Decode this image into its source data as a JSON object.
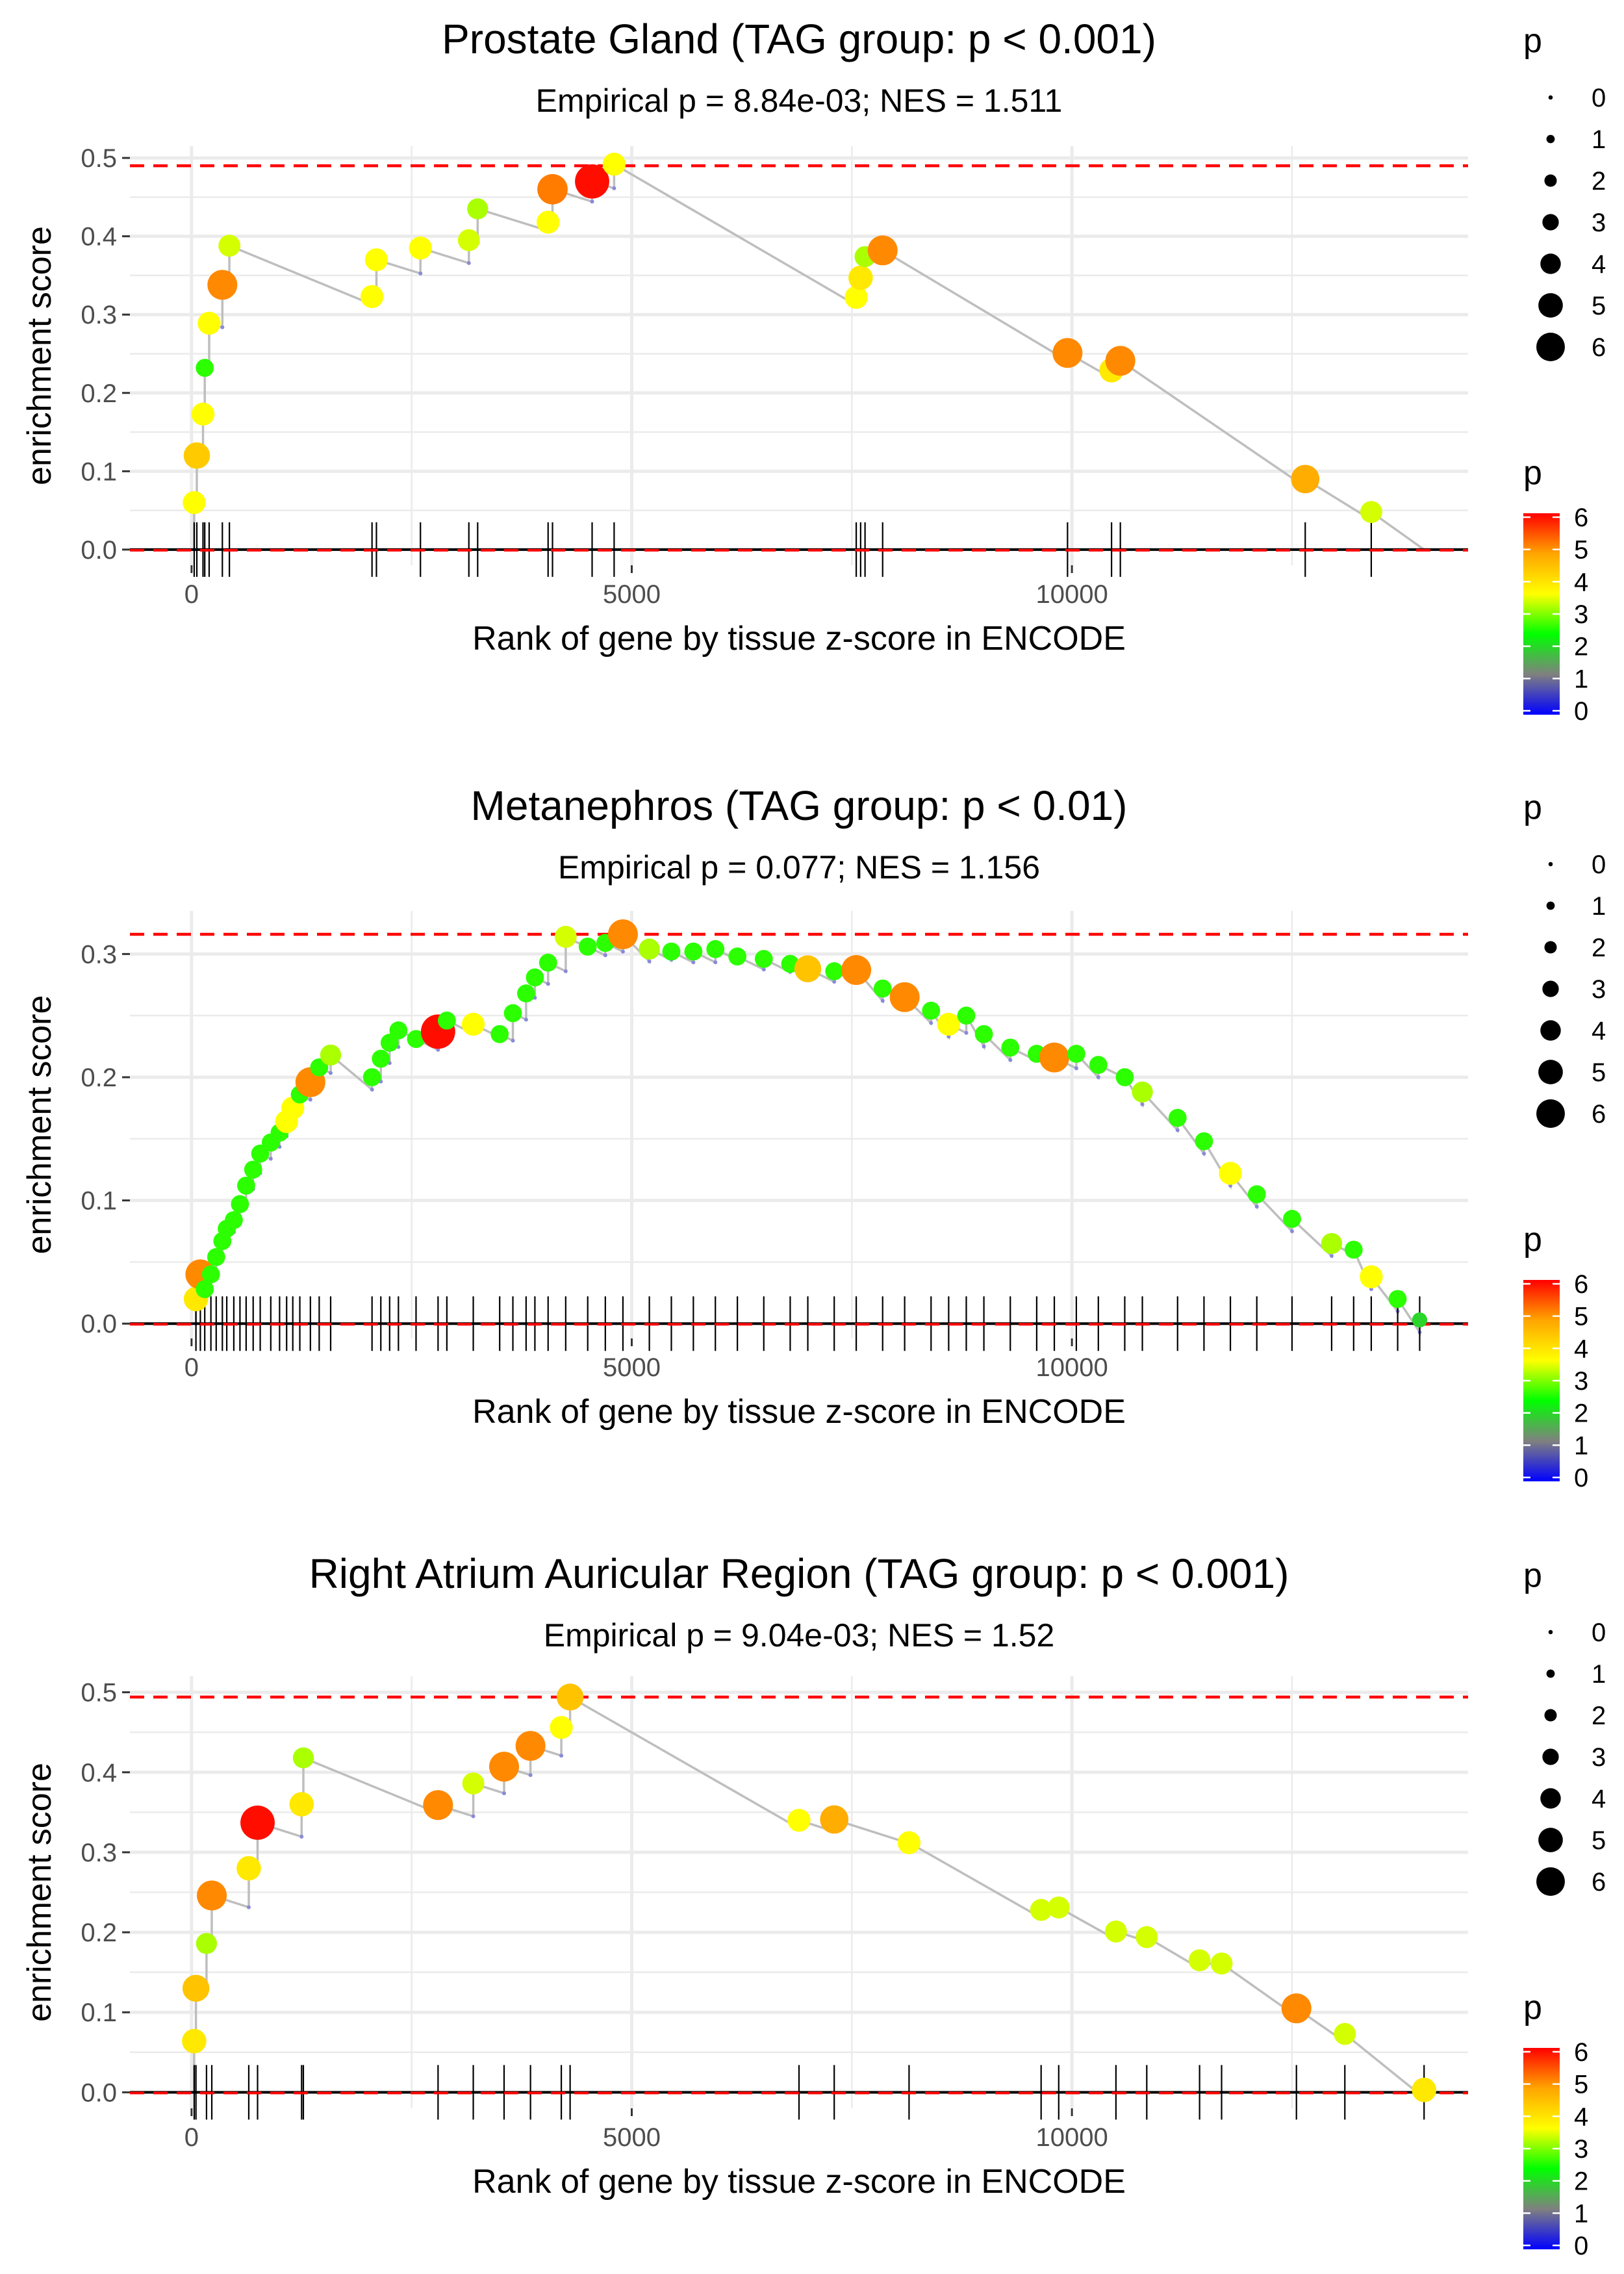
{
  "chart_data": [
    {
      "type": "line",
      "title": "Prostate Gland (TAG group: p < 0.001)",
      "subtitle": "Empirical p = 8.84e-03; NES = 1.511",
      "xlabel": "Rank of gene by tissue z-score in ENCODE",
      "ylabel": "enrichment score",
      "xlim": [
        -700,
        14500
      ],
      "ylim": [
        -0.02,
        0.515
      ],
      "x_ticks": [
        0,
        5000,
        10000
      ],
      "x_tick_labels": [
        "0",
        "5000",
        "10000"
      ],
      "y_ticks": [
        0,
        0.1,
        0.2,
        0.3,
        0.4,
        0.5
      ],
      "y_tick_labels": [
        "0.0",
        "0.1",
        "0.2",
        "0.3",
        "0.4",
        "0.5"
      ],
      "max_es": 0.49,
      "n_genes": 14000,
      "hits": [
        {
          "x": 30,
          "y": 0.06,
          "p": 3.6
        },
        {
          "x": 60,
          "y": 0.12,
          "p": 4.3
        },
        {
          "x": 130,
          "y": 0.173,
          "p": 3.6
        },
        {
          "x": 150,
          "y": 0.232,
          "p": 2.6
        },
        {
          "x": 200,
          "y": 0.289,
          "p": 3.6
        },
        {
          "x": 350,
          "y": 0.338,
          "p": 5.0
        },
        {
          "x": 430,
          "y": 0.388,
          "p": 3.4
        },
        {
          "x": 2050,
          "y": 0.323,
          "p": 3.6
        },
        {
          "x": 2100,
          "y": 0.37,
          "p": 3.6
        },
        {
          "x": 2600,
          "y": 0.385,
          "p": 3.6
        },
        {
          "x": 3150,
          "y": 0.395,
          "p": 3.4
        },
        {
          "x": 3250,
          "y": 0.435,
          "p": 3.2
        },
        {
          "x": 4050,
          "y": 0.418,
          "p": 3.6
        },
        {
          "x": 4100,
          "y": 0.46,
          "p": 5.1
        },
        {
          "x": 4550,
          "y": 0.47,
          "p": 5.9
        },
        {
          "x": 4800,
          "y": 0.492,
          "p": 3.6
        },
        {
          "x": 7550,
          "y": 0.322,
          "p": 3.6
        },
        {
          "x": 7600,
          "y": 0.347,
          "p": 3.9
        },
        {
          "x": 7650,
          "y": 0.374,
          "p": 3.2
        },
        {
          "x": 7850,
          "y": 0.382,
          "p": 5.0
        },
        {
          "x": 9950,
          "y": 0.251,
          "p": 5.0
        },
        {
          "x": 10450,
          "y": 0.229,
          "p": 3.9
        },
        {
          "x": 10550,
          "y": 0.241,
          "p": 5.0
        },
        {
          "x": 12650,
          "y": 0.09,
          "p": 4.7
        },
        {
          "x": 13400,
          "y": 0.048,
          "p": 3.4
        }
      ]
    },
    {
      "type": "line",
      "title": "Metanephros (TAG group: p < 0.01)",
      "subtitle": "Empirical p = 0.077; NES = 1.156",
      "xlabel": "Rank of gene by tissue z-score in ENCODE",
      "ylabel": "enrichment score",
      "xlim": [
        -700,
        14500
      ],
      "ylim": [
        -0.012,
        0.335
      ],
      "x_ticks": [
        0,
        5000,
        10000
      ],
      "x_tick_labels": [
        "0",
        "5000",
        "10000"
      ],
      "y_ticks": [
        0,
        0.1,
        0.2,
        0.3
      ],
      "y_tick_labels": [
        "0.0",
        "0.1",
        "0.2",
        "0.3"
      ],
      "max_es": 0.316,
      "n_genes": 14000,
      "hits": [
        {
          "x": 50,
          "y": 0.02,
          "p": 3.9
        },
        {
          "x": 100,
          "y": 0.04,
          "p": 5.0
        },
        {
          "x": 150,
          "y": 0.028,
          "p": 2.6
        },
        {
          "x": 220,
          "y": 0.04,
          "p": 2.6
        },
        {
          "x": 280,
          "y": 0.054,
          "p": 2.6
        },
        {
          "x": 350,
          "y": 0.067,
          "p": 2.6
        },
        {
          "x": 400,
          "y": 0.077,
          "p": 2.6
        },
        {
          "x": 480,
          "y": 0.084,
          "p": 2.6
        },
        {
          "x": 550,
          "y": 0.097,
          "p": 2.6
        },
        {
          "x": 620,
          "y": 0.112,
          "p": 2.6
        },
        {
          "x": 700,
          "y": 0.125,
          "p": 2.6
        },
        {
          "x": 780,
          "y": 0.138,
          "p": 2.6
        },
        {
          "x": 900,
          "y": 0.147,
          "p": 2.6
        },
        {
          "x": 1000,
          "y": 0.155,
          "p": 2.6
        },
        {
          "x": 1080,
          "y": 0.164,
          "p": 3.6
        },
        {
          "x": 1150,
          "y": 0.175,
          "p": 3.6
        },
        {
          "x": 1230,
          "y": 0.186,
          "p": 2.6
        },
        {
          "x": 1350,
          "y": 0.196,
          "p": 5.0
        },
        {
          "x": 1450,
          "y": 0.208,
          "p": 2.6
        },
        {
          "x": 1580,
          "y": 0.218,
          "p": 3.2
        },
        {
          "x": 2050,
          "y": 0.2,
          "p": 2.6
        },
        {
          "x": 2150,
          "y": 0.215,
          "p": 2.6
        },
        {
          "x": 2250,
          "y": 0.228,
          "p": 2.6
        },
        {
          "x": 2350,
          "y": 0.238,
          "p": 2.6
        },
        {
          "x": 2550,
          "y": 0.231,
          "p": 2.6
        },
        {
          "x": 2800,
          "y": 0.237,
          "p": 5.9
        },
        {
          "x": 2900,
          "y": 0.246,
          "p": 2.6
        },
        {
          "x": 3200,
          "y": 0.243,
          "p": 3.6
        },
        {
          "x": 3500,
          "y": 0.235,
          "p": 2.6
        },
        {
          "x": 3650,
          "y": 0.252,
          "p": 2.6
        },
        {
          "x": 3800,
          "y": 0.268,
          "p": 2.6
        },
        {
          "x": 3900,
          "y": 0.281,
          "p": 2.6
        },
        {
          "x": 4050,
          "y": 0.293,
          "p": 2.6
        },
        {
          "x": 4250,
          "y": 0.314,
          "p": 3.4
        },
        {
          "x": 4500,
          "y": 0.306,
          "p": 2.6
        },
        {
          "x": 4700,
          "y": 0.309,
          "p": 2.6
        },
        {
          "x": 4900,
          "y": 0.316,
          "p": 5.0
        },
        {
          "x": 5200,
          "y": 0.304,
          "p": 3.2
        },
        {
          "x": 5450,
          "y": 0.302,
          "p": 2.6
        },
        {
          "x": 5700,
          "y": 0.302,
          "p": 2.6
        },
        {
          "x": 5950,
          "y": 0.304,
          "p": 2.6
        },
        {
          "x": 6200,
          "y": 0.298,
          "p": 2.6
        },
        {
          "x": 6500,
          "y": 0.296,
          "p": 2.6
        },
        {
          "x": 6800,
          "y": 0.292,
          "p": 2.6
        },
        {
          "x": 7000,
          "y": 0.288,
          "p": 4.4
        },
        {
          "x": 7300,
          "y": 0.286,
          "p": 2.6
        },
        {
          "x": 7550,
          "y": 0.287,
          "p": 5.0
        },
        {
          "x": 7850,
          "y": 0.272,
          "p": 2.6
        },
        {
          "x": 8100,
          "y": 0.265,
          "p": 5.0
        },
        {
          "x": 8400,
          "y": 0.254,
          "p": 2.6
        },
        {
          "x": 8600,
          "y": 0.243,
          "p": 3.6
        },
        {
          "x": 8800,
          "y": 0.25,
          "p": 2.6
        },
        {
          "x": 9000,
          "y": 0.235,
          "p": 2.6
        },
        {
          "x": 9300,
          "y": 0.224,
          "p": 2.6
        },
        {
          "x": 9600,
          "y": 0.219,
          "p": 2.6
        },
        {
          "x": 9800,
          "y": 0.216,
          "p": 5.0
        },
        {
          "x": 10050,
          "y": 0.219,
          "p": 2.6
        },
        {
          "x": 10300,
          "y": 0.21,
          "p": 2.6
        },
        {
          "x": 10600,
          "y": 0.2,
          "p": 2.6
        },
        {
          "x": 10800,
          "y": 0.188,
          "p": 3.2
        },
        {
          "x": 11200,
          "y": 0.167,
          "p": 2.6
        },
        {
          "x": 11500,
          "y": 0.148,
          "p": 2.6
        },
        {
          "x": 11800,
          "y": 0.122,
          "p": 3.6
        },
        {
          "x": 12100,
          "y": 0.105,
          "p": 2.6
        },
        {
          "x": 12500,
          "y": 0.085,
          "p": 2.6
        },
        {
          "x": 12950,
          "y": 0.065,
          "p": 3.2
        },
        {
          "x": 13200,
          "y": 0.06,
          "p": 2.6
        },
        {
          "x": 13400,
          "y": 0.038,
          "p": 3.6
        },
        {
          "x": 13700,
          "y": 0.02,
          "p": 2.6
        },
        {
          "x": 13950,
          "y": 0.003,
          "p": 2.0
        }
      ]
    },
    {
      "type": "line",
      "title": "Right Atrium Auricular Region (TAG group: p < 0.001)",
      "subtitle": "Empirical p = 9.04e-03; NES = 1.52",
      "xlabel": "Rank of gene by tissue z-score in ENCODE",
      "ylabel": "enrichment score",
      "xlim": [
        -700,
        14500
      ],
      "ylim": [
        -0.02,
        0.52
      ],
      "x_ticks": [
        0,
        5000,
        10000
      ],
      "x_tick_labels": [
        "0",
        "5000",
        "10000"
      ],
      "y_ticks": [
        0,
        0.1,
        0.2,
        0.3,
        0.4,
        0.5
      ],
      "y_tick_labels": [
        "0.0",
        "0.1",
        "0.2",
        "0.3",
        "0.4",
        "0.5"
      ],
      "max_es": 0.494,
      "n_genes": 14100,
      "hits": [
        {
          "x": 30,
          "y": 0.064,
          "p": 3.9
        },
        {
          "x": 50,
          "y": 0.13,
          "p": 4.4
        },
        {
          "x": 170,
          "y": 0.186,
          "p": 3.2
        },
        {
          "x": 230,
          "y": 0.246,
          "p": 5.0
        },
        {
          "x": 650,
          "y": 0.28,
          "p": 3.9
        },
        {
          "x": 750,
          "y": 0.337,
          "p": 5.9
        },
        {
          "x": 1250,
          "y": 0.36,
          "p": 3.9
        },
        {
          "x": 1270,
          "y": 0.418,
          "p": 3.2
        },
        {
          "x": 2800,
          "y": 0.359,
          "p": 5.0
        },
        {
          "x": 3200,
          "y": 0.386,
          "p": 3.4
        },
        {
          "x": 3550,
          "y": 0.407,
          "p": 5.0
        },
        {
          "x": 3850,
          "y": 0.433,
          "p": 5.0
        },
        {
          "x": 4200,
          "y": 0.456,
          "p": 3.6
        },
        {
          "x": 4300,
          "y": 0.494,
          "p": 4.4
        },
        {
          "x": 6900,
          "y": 0.34,
          "p": 3.6
        },
        {
          "x": 7300,
          "y": 0.341,
          "p": 4.7
        },
        {
          "x": 8150,
          "y": 0.312,
          "p": 3.6
        },
        {
          "x": 9650,
          "y": 0.228,
          "p": 3.4
        },
        {
          "x": 9850,
          "y": 0.231,
          "p": 3.4
        },
        {
          "x": 10500,
          "y": 0.201,
          "p": 3.4
        },
        {
          "x": 10850,
          "y": 0.194,
          "p": 3.4
        },
        {
          "x": 11450,
          "y": 0.165,
          "p": 3.4
        },
        {
          "x": 11700,
          "y": 0.161,
          "p": 3.4
        },
        {
          "x": 12550,
          "y": 0.105,
          "p": 5.0
        },
        {
          "x": 13100,
          "y": 0.073,
          "p": 3.4
        },
        {
          "x": 14000,
          "y": 0.003,
          "p": 3.9
        }
      ]
    }
  ],
  "legends": [
    {
      "size_title": "p",
      "size_labels": [
        "0",
        "1",
        "2",
        "3",
        "4",
        "5",
        "6"
      ],
      "color_title": "p",
      "color_labels": [
        "6",
        "5",
        "4",
        "3",
        "2",
        "1",
        "0"
      ]
    },
    {
      "size_title": "p",
      "size_labels": [
        "0",
        "1",
        "2",
        "3",
        "4",
        "5",
        "6"
      ],
      "color_title": "p",
      "color_labels": [
        "6",
        "5",
        "4",
        "3",
        "2",
        "1",
        "0"
      ]
    },
    {
      "size_title": "p",
      "size_labels": [
        "0",
        "1",
        "2",
        "3",
        "4",
        "5",
        "6"
      ],
      "color_title": "p",
      "color_labels": [
        "6",
        "5",
        "4",
        "3",
        "2",
        "1",
        "0"
      ]
    }
  ],
  "colors": {
    "gradient": [
      "#0000ff",
      "#808080",
      "#00ff00",
      "#ffff00",
      "#ffa500",
      "#ff0000"
    ],
    "max_line": "#ff0000",
    "curve": "#bebebe",
    "grid": "#ebebeb"
  }
}
